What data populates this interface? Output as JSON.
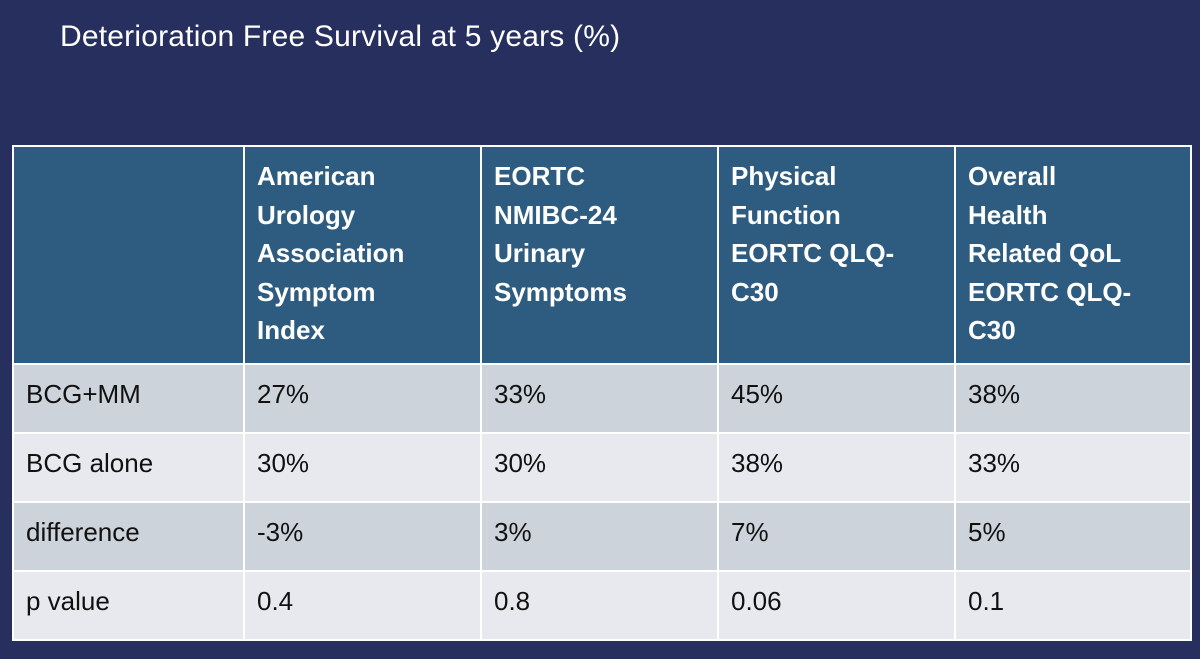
{
  "title": "Deterioration Free Survival at 5 years (%)",
  "table": {
    "headers": [
      {
        "lines": []
      },
      {
        "lines": [
          "American",
          "Urology",
          "Association",
          "Symptom",
          "Index"
        ]
      },
      {
        "lines": [
          "EORTC",
          "NMIBC-24",
          "Urinary",
          "Symptoms"
        ]
      },
      {
        "lines": [
          "Physical",
          "Function",
          "EORTC QLQ-",
          "C30"
        ]
      },
      {
        "lines": [
          "Overall",
          "Health",
          "Related QoL",
          "EORTC QLQ-",
          "C30"
        ]
      }
    ],
    "rows": [
      {
        "cells": [
          "BCG+MM",
          "27%",
          "33%",
          "45%",
          "38%"
        ]
      },
      {
        "cells": [
          "BCG alone",
          "30%",
          "30%",
          "38%",
          "33%"
        ]
      },
      {
        "cells": [
          "difference",
          "-3%",
          "3%",
          "7%",
          "5%"
        ]
      },
      {
        "cells": [
          "p value",
          "0.4",
          "0.8",
          "0.06",
          "0.1"
        ]
      }
    ]
  },
  "colors": {
    "background": "#262f5e",
    "header_fill": "#2e5c80",
    "row_fill_dark": "#cdd3da",
    "row_fill_light": "#e7e9ee",
    "border": "#ffffff"
  }
}
